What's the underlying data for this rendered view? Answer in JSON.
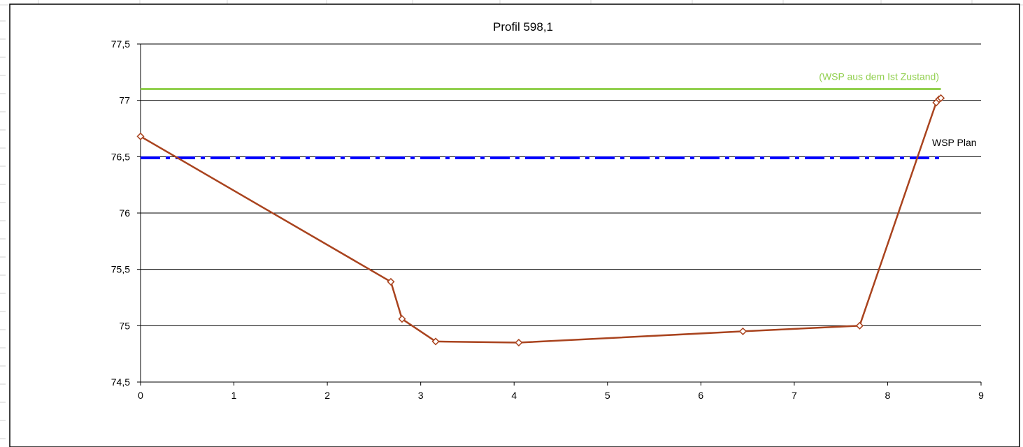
{
  "chart_data": {
    "type": "line",
    "title": "Profil 598,1",
    "xlabel": "",
    "ylabel": "",
    "xlim": [
      0,
      9
    ],
    "ylim": [
      74.5,
      77.5
    ],
    "x_ticks": [
      "0",
      "1",
      "2",
      "3",
      "4",
      "5",
      "6",
      "7",
      "8",
      "9"
    ],
    "y_ticks": [
      "74,5",
      "75",
      "75,5",
      "76",
      "76,5",
      "77",
      "77,5"
    ],
    "grid": "horizontal",
    "series": [
      {
        "color": "#a9431e",
        "marker": "diamond",
        "points": [
          {
            "x": 0.0,
            "y": 76.68
          },
          {
            "x": 2.68,
            "y": 75.39
          },
          {
            "x": 2.8,
            "y": 75.06
          },
          {
            "x": 3.16,
            "y": 74.86
          },
          {
            "x": 4.05,
            "y": 74.85
          },
          {
            "x": 6.45,
            "y": 74.95
          },
          {
            "x": 7.7,
            "y": 75.0
          },
          {
            "x": 8.52,
            "y": 76.98
          },
          {
            "x": 8.55,
            "y": 77.01
          },
          {
            "x": 8.57,
            "y": 77.02
          }
        ]
      }
    ],
    "reference_lines": [
      {
        "label": "(WSP aus dem Ist Zustand)",
        "y": 77.1,
        "x_end": 8.57,
        "color": "#92d050",
        "style": "solid"
      },
      {
        "label": "WSP Plan",
        "y": 76.49,
        "x_end": 8.57,
        "color": "#0000ff",
        "style": "dash-dot"
      }
    ]
  }
}
